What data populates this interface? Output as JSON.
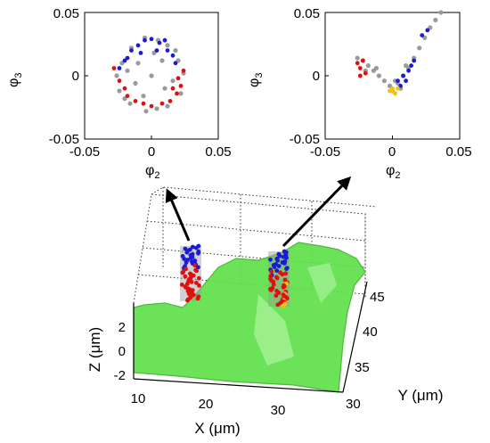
{
  "colors": {
    "background": "#9a9a9a",
    "blue": "#1b1bd6",
    "red": "#e01010",
    "yellow": "#f2c10f",
    "surface": "#5fe04a",
    "surface_edge": "#3fb42c",
    "arrow": "#000000"
  },
  "chart_data": [
    {
      "type": "scatter",
      "panel": "top-left",
      "xlabel": "φ",
      "xlabel_sub": "2",
      "ylabel": "φ",
      "ylabel_sub": "3",
      "xlim": [
        -0.05,
        0.05
      ],
      "ylim": [
        -0.05,
        0.05
      ],
      "xticks": [
        -0.05,
        0,
        0.05
      ],
      "xtick_labels": [
        "-0.05",
        "0",
        "0.05"
      ],
      "yticks": [
        -0.05,
        0,
        0.05
      ],
      "ytick_labels": [
        "-0.05",
        "0",
        "0.05"
      ],
      "grid": false,
      "series": [
        {
          "color": "background",
          "shape": "roughly circular cloud",
          "points": [
            [
              -0.005,
              0.03
            ],
            [
              0.005,
              0.028
            ],
            [
              -0.015,
              0.022
            ],
            [
              0.012,
              0.024
            ],
            [
              -0.022,
              0.01
            ],
            [
              0.02,
              0.012
            ],
            [
              -0.026,
              0.0
            ],
            [
              0.024,
              0.002
            ],
            [
              -0.024,
              -0.012
            ],
            [
              0.022,
              -0.014
            ],
            [
              -0.016,
              -0.022
            ],
            [
              0.012,
              -0.024
            ],
            [
              -0.004,
              -0.028
            ],
            [
              0.004,
              -0.026
            ],
            [
              0.0,
              0.0
            ],
            [
              -0.01,
              0.01
            ],
            [
              0.01,
              -0.01
            ],
            [
              -0.012,
              -0.006
            ],
            [
              0.008,
              0.012
            ],
            [
              0.016,
              -0.004
            ],
            [
              -0.018,
              0.004
            ],
            [
              0.002,
              0.018
            ],
            [
              -0.006,
              -0.016
            ],
            [
              0.018,
              0.02
            ],
            [
              -0.02,
              -0.018
            ]
          ]
        },
        {
          "color": "blue",
          "points": [
            [
              -0.02,
              0.012
            ],
            [
              -0.015,
              0.02
            ],
            [
              -0.01,
              0.024
            ],
            [
              -0.005,
              0.028
            ],
            [
              0.0,
              0.029
            ],
            [
              0.006,
              0.026
            ],
            [
              0.012,
              0.02
            ],
            [
              0.016,
              0.016
            ],
            [
              -0.024,
              0.006
            ],
            [
              -0.018,
              0.014
            ],
            [
              0.004,
              0.02
            ],
            [
              -0.008,
              0.018
            ],
            [
              0.01,
              0.028
            ],
            [
              0.018,
              0.01
            ]
          ]
        },
        {
          "color": "red",
          "points": [
            [
              0.02,
              -0.002
            ],
            [
              0.022,
              -0.008
            ],
            [
              0.019,
              -0.014
            ],
            [
              0.014,
              -0.02
            ],
            [
              0.008,
              -0.022
            ],
            [
              0.0,
              -0.024
            ],
            [
              -0.006,
              -0.022
            ],
            [
              -0.012,
              -0.02
            ],
            [
              -0.018,
              -0.016
            ],
            [
              -0.024,
              -0.004
            ],
            [
              -0.028,
              0.006
            ],
            [
              0.024,
              0.004
            ],
            [
              0.016,
              -0.01
            ],
            [
              -0.02,
              -0.01
            ]
          ]
        }
      ]
    },
    {
      "type": "scatter",
      "panel": "top-right",
      "xlabel": "φ",
      "xlabel_sub": "2",
      "ylabel": "φ",
      "ylabel_sub": "3",
      "xlim": [
        -0.05,
        0.05
      ],
      "ylim": [
        -0.05,
        0.05
      ],
      "xticks": [
        -0.05,
        0,
        0.05
      ],
      "xtick_labels": [
        "-0.05",
        "0",
        "0.05"
      ],
      "yticks": [
        -0.05,
        0,
        0.05
      ],
      "ytick_labels": [
        "-0.05",
        "0",
        "0.05"
      ],
      "grid": false,
      "series": [
        {
          "color": "background",
          "shape": "V-shaped curve",
          "points": [
            [
              -0.026,
              0.014
            ],
            [
              -0.022,
              0.012
            ],
            [
              -0.018,
              0.008
            ],
            [
              -0.014,
              0.004
            ],
            [
              -0.01,
              0.0
            ],
            [
              -0.006,
              -0.004
            ],
            [
              -0.002,
              -0.008
            ],
            [
              0.0,
              -0.012
            ],
            [
              0.004,
              -0.006
            ],
            [
              0.008,
              0.0
            ],
            [
              0.012,
              0.006
            ],
            [
              0.016,
              0.014
            ],
            [
              0.02,
              0.022
            ],
            [
              0.024,
              0.03
            ],
            [
              0.028,
              0.038
            ],
            [
              0.032,
              0.044
            ],
            [
              0.036,
              0.05
            ],
            [
              -0.012,
              0.006
            ],
            [
              0.002,
              -0.004
            ],
            [
              0.01,
              0.008
            ],
            [
              -0.02,
              0.004
            ],
            [
              0.006,
              -0.01
            ]
          ]
        },
        {
          "color": "blue",
          "points": [
            [
              0.004,
              -0.004
            ],
            [
              0.008,
              0.0
            ],
            [
              0.012,
              0.004
            ],
            [
              0.014,
              0.008
            ],
            [
              0.006,
              -0.008
            ],
            [
              0.01,
              -0.004
            ],
            [
              0.016,
              0.012
            ],
            [
              0.022,
              0.032
            ],
            [
              0.026,
              0.036
            ]
          ]
        },
        {
          "color": "red",
          "points": [
            [
              -0.026,
              0.01
            ],
            [
              -0.024,
              0.006
            ],
            [
              -0.022,
              0.012
            ],
            [
              -0.02,
              0.002
            ],
            [
              -0.024,
              0.0
            ]
          ]
        },
        {
          "color": "yellow",
          "points": [
            [
              0.0,
              -0.012
            ],
            [
              0.002,
              -0.014
            ],
            [
              -0.002,
              -0.012
            ],
            [
              0.004,
              -0.01
            ],
            [
              0.0,
              -0.01
            ]
          ]
        }
      ]
    },
    {
      "type": "scatter3d",
      "panel": "bottom",
      "xlabel": "X (μm)",
      "ylabel": "Y (μm)",
      "zlabel": "Z (μm)",
      "xticks": [
        10,
        20,
        30
      ],
      "xtick_labels": [
        "10",
        "20",
        "30"
      ],
      "yticks": [
        30,
        35,
        40,
        45
      ],
      "ytick_labels": [
        "30",
        "35",
        "40",
        "45"
      ],
      "zticks": [
        -2,
        0,
        2
      ],
      "ztick_labels": [
        "-2",
        "0",
        "2"
      ],
      "grid": true,
      "surface_color": "surface",
      "clusters": [
        {
          "position": "left",
          "colors": [
            "red",
            "blue",
            "background"
          ],
          "arrow_to": "top-left"
        },
        {
          "position": "right",
          "colors": [
            "red",
            "blue",
            "yellow",
            "background"
          ],
          "arrow_to": "top-right"
        }
      ]
    }
  ]
}
